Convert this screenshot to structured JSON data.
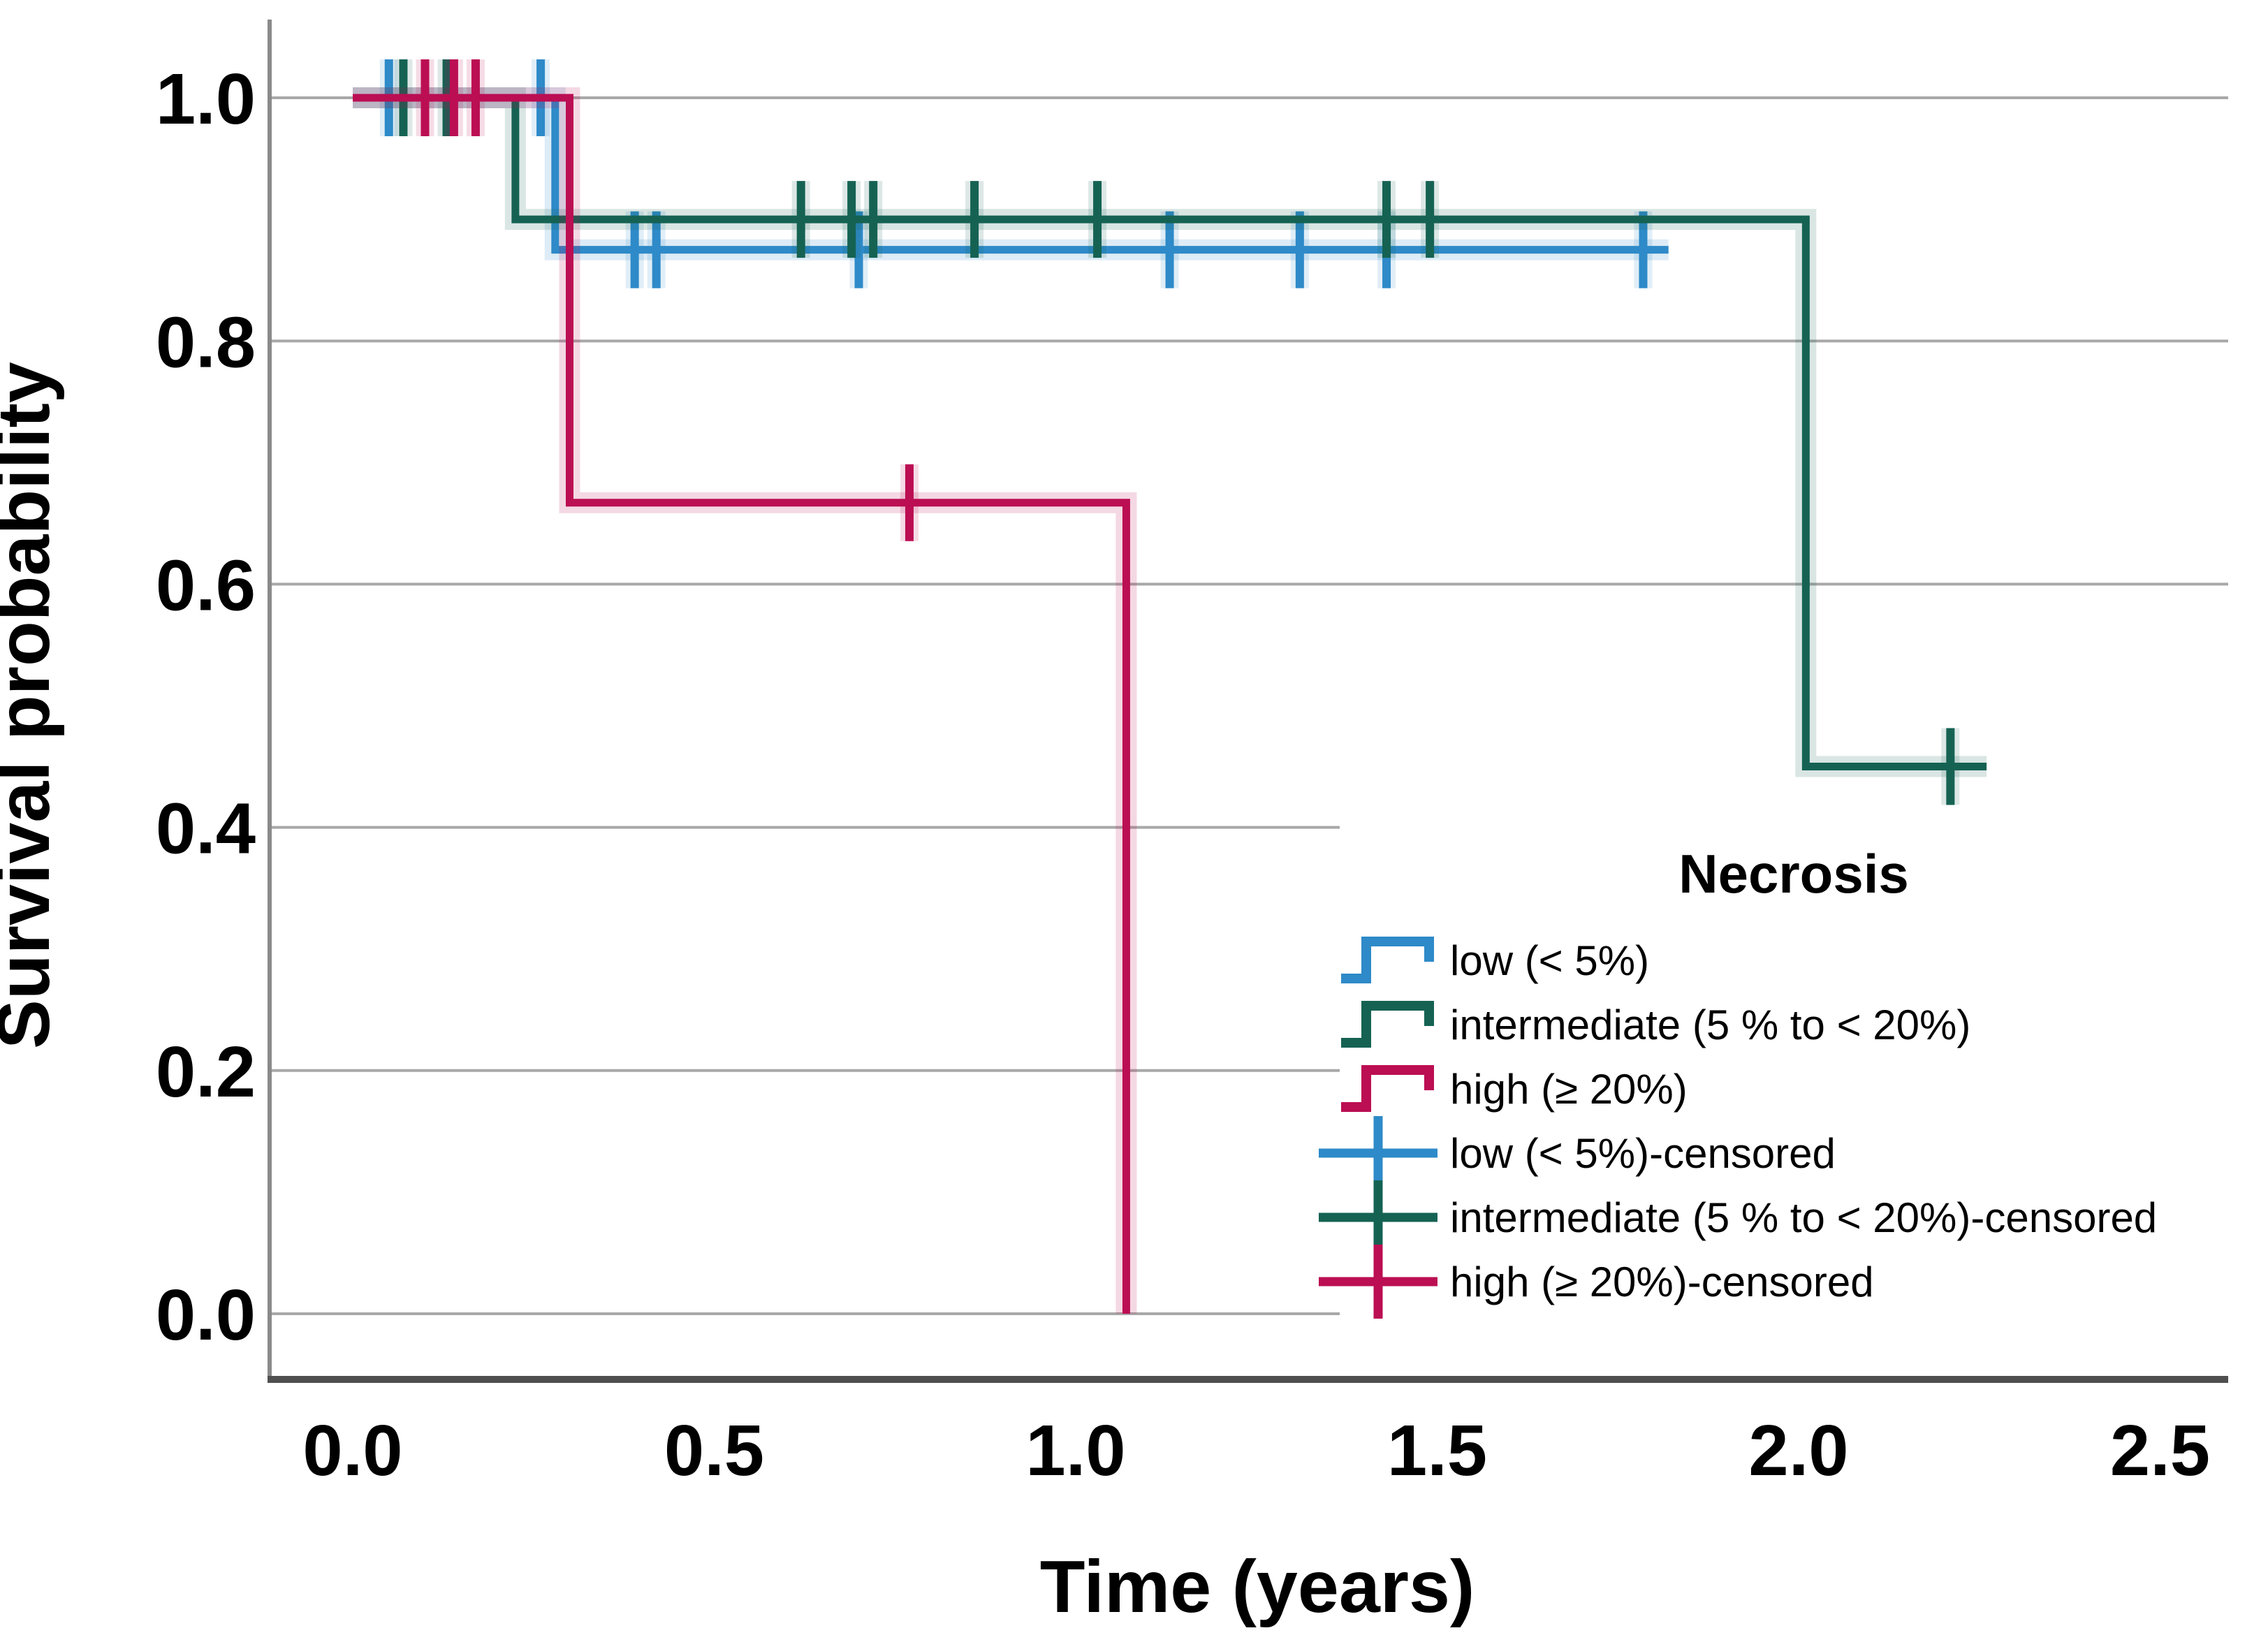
{
  "chart_data": {
    "type": "line",
    "subtype": "kaplan-meier-step-plot",
    "title": "",
    "xlabel": "Time (years)",
    "ylabel": "Survival probability",
    "x_ticks": {
      "values": [
        0.0,
        0.5,
        1.0,
        1.5,
        2.0,
        2.5
      ],
      "labels": [
        "0.0",
        "0.5",
        "1.0",
        "1.5",
        "2.0",
        "2.5"
      ]
    },
    "y_ticks": {
      "values": [
        0.0,
        0.2,
        0.4,
        0.6,
        0.8,
        1.0
      ],
      "labels": [
        "0.0",
        "0.2",
        "0.4",
        "0.6",
        "0.8",
        "1.0"
      ]
    },
    "xlim": [
      0,
      2.6
    ],
    "ylim": [
      0,
      1.05
    ],
    "grid": true,
    "colors": {
      "low": "#2E8AC8",
      "intermediate": "#156253",
      "high": "#BB0E53",
      "gridline": "#A8A8A8",
      "y_axis_line": "#8A8A8A",
      "x_axis_line": "#4F4F4F",
      "text": "#000000",
      "background": "#FFFFFF"
    },
    "legend": {
      "title": "Necrosis",
      "position": "lower right",
      "entries": [
        {
          "label": "low (< 5%)",
          "series": "low",
          "symbol": "step"
        },
        {
          "label": "intermediate (5 % to < 20%)",
          "series": "intermediate",
          "symbol": "step"
        },
        {
          "label": "high (≥ 20%)",
          "series": "high",
          "symbol": "step"
        },
        {
          "label": "low (< 5%)-censored",
          "series": "low",
          "symbol": "plus"
        },
        {
          "label": "intermediate (5 % to < 20%)-censored",
          "series": "intermediate",
          "symbol": "plus"
        },
        {
          "label": "high (≥ 20%)-censored",
          "series": "high",
          "symbol": "plus"
        }
      ]
    },
    "series": [
      {
        "name": "low (< 5%)",
        "key": "low",
        "steps": [
          [
            0.0,
            1.0
          ],
          [
            0.28,
            1.0
          ],
          [
            0.28,
            0.875
          ],
          [
            1.82,
            0.875
          ]
        ],
        "censored": [
          [
            0.05,
            1.0
          ],
          [
            0.26,
            1.0
          ],
          [
            0.39,
            0.875
          ],
          [
            0.42,
            0.875
          ],
          [
            0.7,
            0.875
          ],
          [
            1.13,
            0.875
          ],
          [
            1.31,
            0.875
          ],
          [
            1.43,
            0.875
          ],
          [
            1.785,
            0.875
          ]
        ]
      },
      {
        "name": "intermediate (5 % to < 20%)",
        "key": "intermediate",
        "steps": [
          [
            0.0,
            1.0
          ],
          [
            0.225,
            1.0
          ],
          [
            0.225,
            0.9
          ],
          [
            2.01,
            0.9
          ],
          [
            2.01,
            0.45
          ],
          [
            2.26,
            0.45
          ]
        ],
        "censored": [
          [
            0.07,
            1.0
          ],
          [
            0.13,
            1.0
          ],
          [
            0.62,
            0.9
          ],
          [
            0.69,
            0.9
          ],
          [
            0.72,
            0.9
          ],
          [
            0.86,
            0.9
          ],
          [
            1.03,
            0.9
          ],
          [
            1.43,
            0.9
          ],
          [
            1.49,
            0.9
          ],
          [
            2.21,
            0.45
          ]
        ]
      },
      {
        "name": "high (≥ 20%)",
        "key": "high",
        "steps": [
          [
            0.0,
            1.0
          ],
          [
            0.3,
            1.0
          ],
          [
            0.3,
            0.667
          ],
          [
            1.07,
            0.667
          ],
          [
            1.07,
            0.0
          ]
        ],
        "censored": [
          [
            0.1,
            1.0
          ],
          [
            0.14,
            1.0
          ],
          [
            0.17,
            1.0
          ],
          [
            0.77,
            0.667
          ]
        ]
      }
    ]
  }
}
